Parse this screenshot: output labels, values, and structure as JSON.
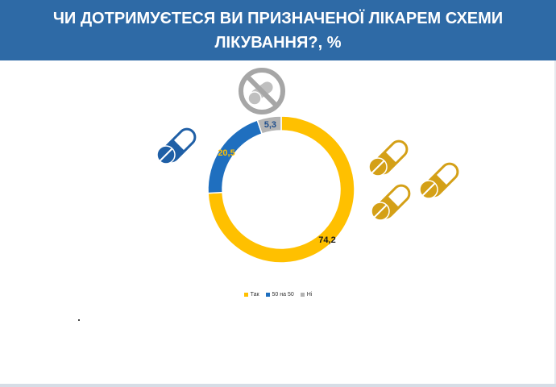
{
  "header": {
    "title_line1": "ЧИ ДОТРИМУЄТЕСЯ ВИ ПРИЗНАЧЕНОЇ ЛІКАРЕМ СХЕМИ",
    "title_line2": "ЛІКУВАННЯ?, %"
  },
  "colors": {
    "header_bg": "#2e6aa6",
    "yes": "#ffc000",
    "half": "#1f6fbf",
    "no": "#b4b4b4",
    "pill_gold": "#d4a017",
    "pill_blue": "#1f5fa6"
  },
  "icons": [
    "no-pills-icon",
    "blue-pill-icon",
    "gold-pill-icon"
  ],
  "chart_data": {
    "type": "pie",
    "variant": "donut",
    "labels": [
      "Так",
      "50 на 50",
      "Ні"
    ],
    "values": [
      74.2,
      20.5,
      5.3
    ],
    "data_labels": [
      "74,2",
      "20,5",
      "5,3"
    ],
    "legend_placement": "bottom"
  }
}
